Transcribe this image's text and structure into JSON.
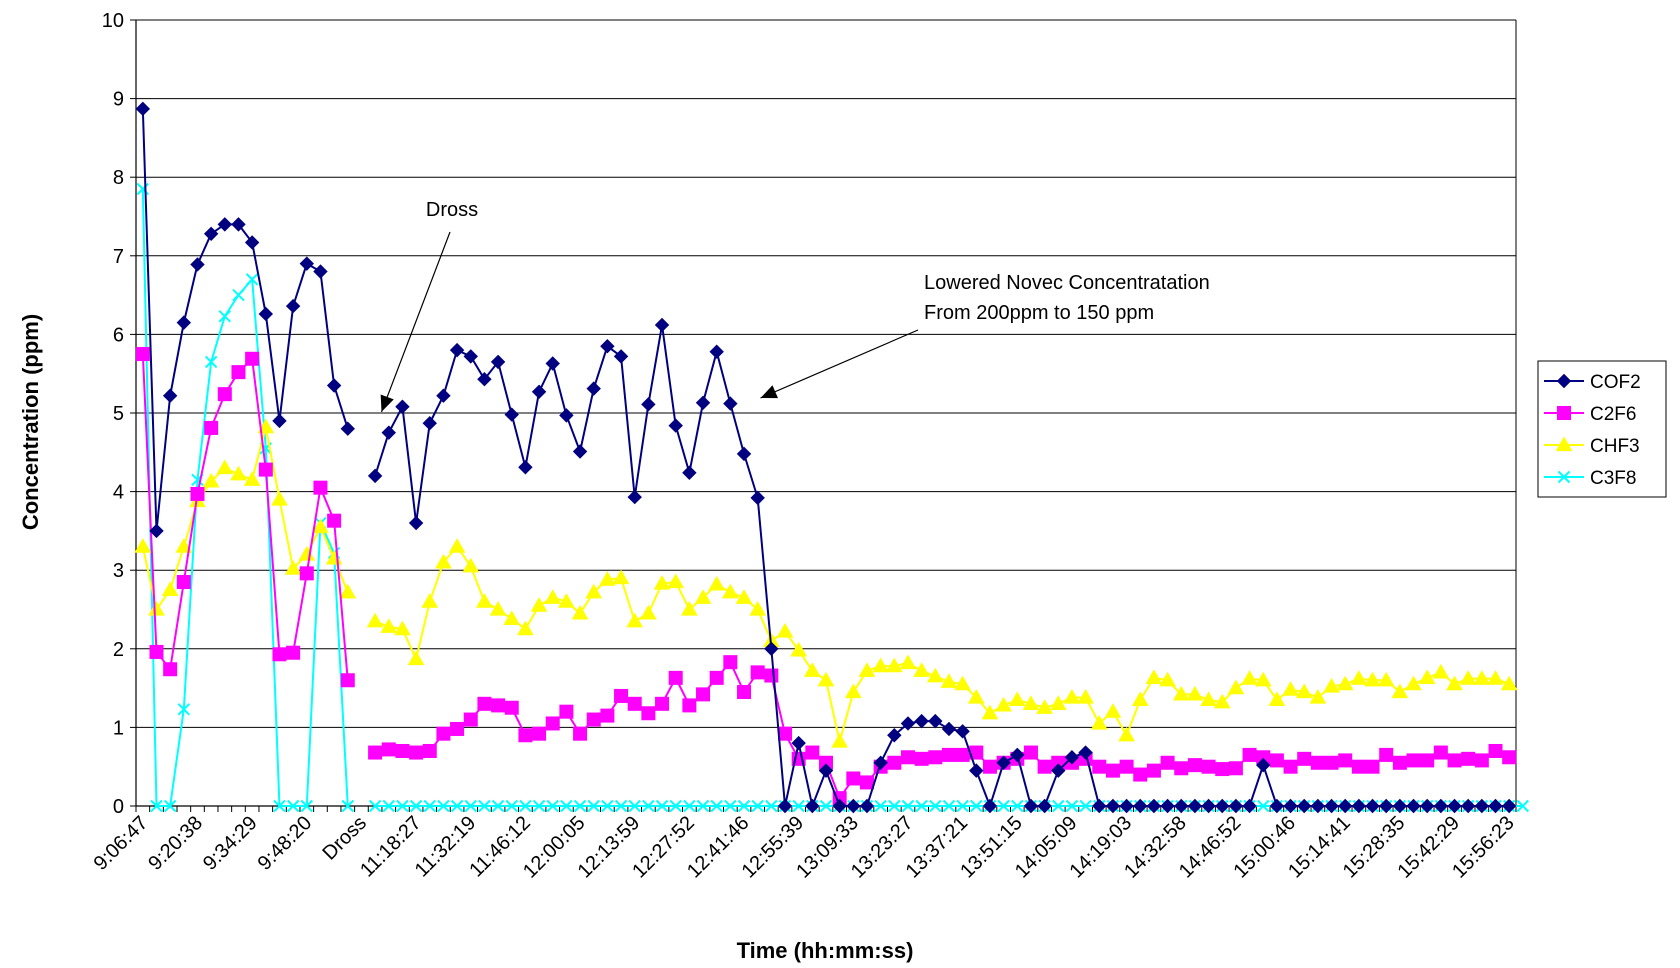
{
  "chart_data": {
    "type": "line",
    "xlabel": "Time (hh:mm:ss)",
    "ylabel": "Concentration (ppm)",
    "ylim": [
      0,
      10
    ],
    "yticks": [
      "0",
      "1",
      "2",
      "3",
      "4",
      "5",
      "6",
      "7",
      "8",
      "9",
      "10"
    ],
    "grid": "horizontal",
    "legend_position": "right",
    "x_tick_labels": [
      "9:06:47",
      "9:20:38",
      "9:34:29",
      "9:48:20",
      "Dross",
      "11:18:27",
      "11:32:19",
      "11:46:12",
      "12:00:05",
      "12:13:59",
      "12:27:52",
      "12:41:46",
      "12:55:39",
      "13:09:33",
      "13:23:27",
      "13:37:21",
      "13:51:15",
      "14:05:09",
      "14:19:03",
      "14:32:58",
      "14:46:52",
      "15:00:46",
      "15:14:41",
      "15:28:35",
      "15:42:29",
      "15:56:23"
    ],
    "x_tick_every": 4,
    "num_points": 101,
    "annotations": [
      {
        "lines": [
          "Dross"
        ],
        "points_to_index": 17,
        "points_to_value": 4.8
      },
      {
        "lines": [
          "Lowered Novec Concentratation",
          "From 200ppm to 150 ppm"
        ],
        "points_to_index": 44,
        "points_to_value": 5.1
      }
    ],
    "series": [
      {
        "name": "COF2",
        "color": "#000080",
        "marker": "diamond",
        "values": [
          8.87,
          3.5,
          5.22,
          6.15,
          6.89,
          7.28,
          7.4,
          7.4,
          7.17,
          6.26,
          4.9,
          6.36,
          6.9,
          6.8,
          5.35,
          4.8,
          null,
          4.2,
          4.75,
          5.08,
          3.6,
          4.87,
          5.22,
          5.8,
          5.72,
          5.43,
          5.65,
          4.98,
          4.31,
          5.27,
          5.63,
          4.97,
          4.51,
          5.31,
          5.85,
          5.72,
          3.93,
          5.11,
          6.12,
          4.84,
          4.24,
          5.13,
          5.78,
          5.12,
          4.48,
          3.92,
          2.0,
          0.0,
          0.8,
          0.0,
          0.45,
          0.0,
          0.0,
          0.0,
          0.55,
          0.9,
          1.05,
          1.08,
          1.08,
          0.98,
          0.95,
          0.45,
          0.0,
          0.55,
          0.65,
          0.0,
          0.0,
          0.45,
          0.62,
          0.68,
          0.0,
          0.0,
          0.0,
          0.0,
          0.0,
          0.0,
          0.0,
          0.0,
          0.0,
          0.0,
          0.0,
          0.0,
          0.52,
          0.0,
          0.0,
          0.0,
          0.0,
          0.0,
          0.0,
          0.0,
          0.0,
          0.0,
          0.0,
          0.0,
          0.0,
          0.0,
          0.0,
          0.0,
          0.0,
          0.0,
          0.0
        ]
      },
      {
        "name": "C2F6",
        "color": "#FF00FF",
        "marker": "square",
        "values": [
          5.75,
          1.96,
          1.74,
          2.85,
          3.97,
          4.81,
          5.24,
          5.52,
          5.69,
          4.28,
          1.93,
          1.95,
          2.96,
          4.05,
          3.63,
          1.6,
          null,
          0.68,
          0.72,
          0.7,
          0.68,
          0.7,
          0.92,
          0.98,
          1.1,
          1.3,
          1.28,
          1.25,
          0.9,
          0.92,
          1.05,
          1.2,
          0.92,
          1.1,
          1.15,
          1.4,
          1.3,
          1.18,
          1.3,
          1.63,
          1.28,
          1.42,
          1.63,
          1.83,
          1.45,
          1.7,
          1.66,
          0.92,
          0.6,
          0.68,
          0.55,
          0.1,
          0.35,
          0.3,
          0.5,
          0.55,
          0.62,
          0.6,
          0.62,
          0.65,
          0.65,
          0.68,
          0.5,
          0.55,
          0.6,
          0.68,
          0.5,
          0.55,
          0.55,
          0.6,
          0.5,
          0.45,
          0.5,
          0.4,
          0.45,
          0.55,
          0.48,
          0.52,
          0.5,
          0.47,
          0.48,
          0.65,
          0.62,
          0.58,
          0.5,
          0.6,
          0.55,
          0.55,
          0.58,
          0.5,
          0.5,
          0.65,
          0.55,
          0.58,
          0.58,
          0.68,
          0.58,
          0.6,
          0.58,
          0.7,
          0.62
        ]
      },
      {
        "name": "CHF3",
        "color": "#FFFF00",
        "marker": "triangle",
        "values": [
          3.3,
          2.5,
          2.75,
          3.3,
          3.88,
          4.13,
          4.3,
          4.22,
          4.15,
          4.82,
          3.9,
          3.02,
          3.2,
          3.55,
          3.15,
          2.72,
          null,
          2.35,
          2.28,
          2.25,
          1.87,
          2.6,
          3.1,
          3.3,
          3.05,
          2.6,
          2.5,
          2.38,
          2.25,
          2.55,
          2.65,
          2.6,
          2.45,
          2.72,
          2.88,
          2.9,
          2.35,
          2.45,
          2.83,
          2.85,
          2.5,
          2.65,
          2.82,
          2.72,
          2.65,
          2.5,
          2.1,
          2.22,
          1.98,
          1.72,
          1.6,
          0.82,
          1.45,
          1.72,
          1.78,
          1.78,
          1.82,
          1.72,
          1.65,
          1.58,
          1.55,
          1.38,
          1.18,
          1.28,
          1.35,
          1.3,
          1.25,
          1.3,
          1.38,
          1.38,
          1.05,
          1.2,
          0.9,
          1.35,
          1.63,
          1.6,
          1.42,
          1.42,
          1.35,
          1.32,
          1.5,
          1.62,
          1.6,
          1.35,
          1.48,
          1.45,
          1.38,
          1.52,
          1.55,
          1.62,
          1.6,
          1.6,
          1.45,
          1.55,
          1.63,
          1.7,
          1.55,
          1.62,
          1.62,
          1.62,
          1.55
        ]
      },
      {
        "name": "C3F8",
        "color": "#00FFFF",
        "marker": "x",
        "values": [
          7.85,
          0.0,
          0.0,
          1.23,
          4.15,
          5.65,
          6.23,
          6.5,
          6.7,
          4.55,
          0.0,
          0.0,
          0.0,
          3.6,
          3.22,
          0.0,
          null,
          0.0,
          0.0,
          0.0,
          0.0,
          0.0,
          0.0,
          0.0,
          0.0,
          0.0,
          0.0,
          0.0,
          0.0,
          0.0,
          0.0,
          0.0,
          0.0,
          0.0,
          0.0,
          0.0,
          0.0,
          0.0,
          0.0,
          0.0,
          0.0,
          0.0,
          0.0,
          0.0,
          0.0,
          0.0,
          0.0,
          0.0,
          0.0,
          0.0,
          0.0,
          0.0,
          0.0,
          0.0,
          0.0,
          0.0,
          0.0,
          0.0,
          0.0,
          0.0,
          0.0,
          0.0,
          0.0,
          0.0,
          0.0,
          0.0,
          0.0,
          0.0,
          0.0,
          0.0,
          0.0,
          0.0,
          0.0,
          0.0,
          0.0,
          0.0,
          0.0,
          0.0,
          0.0,
          0.0,
          0.0,
          0.0,
          0.0,
          0.0,
          0.0,
          0.0,
          0.0,
          0.0,
          0.0,
          0.0,
          0.0,
          0.0,
          0.0,
          0.0,
          0.0,
          0.0,
          0.0,
          0.0,
          0.0,
          0.0,
          0.0,
          0.0
        ]
      }
    ]
  }
}
